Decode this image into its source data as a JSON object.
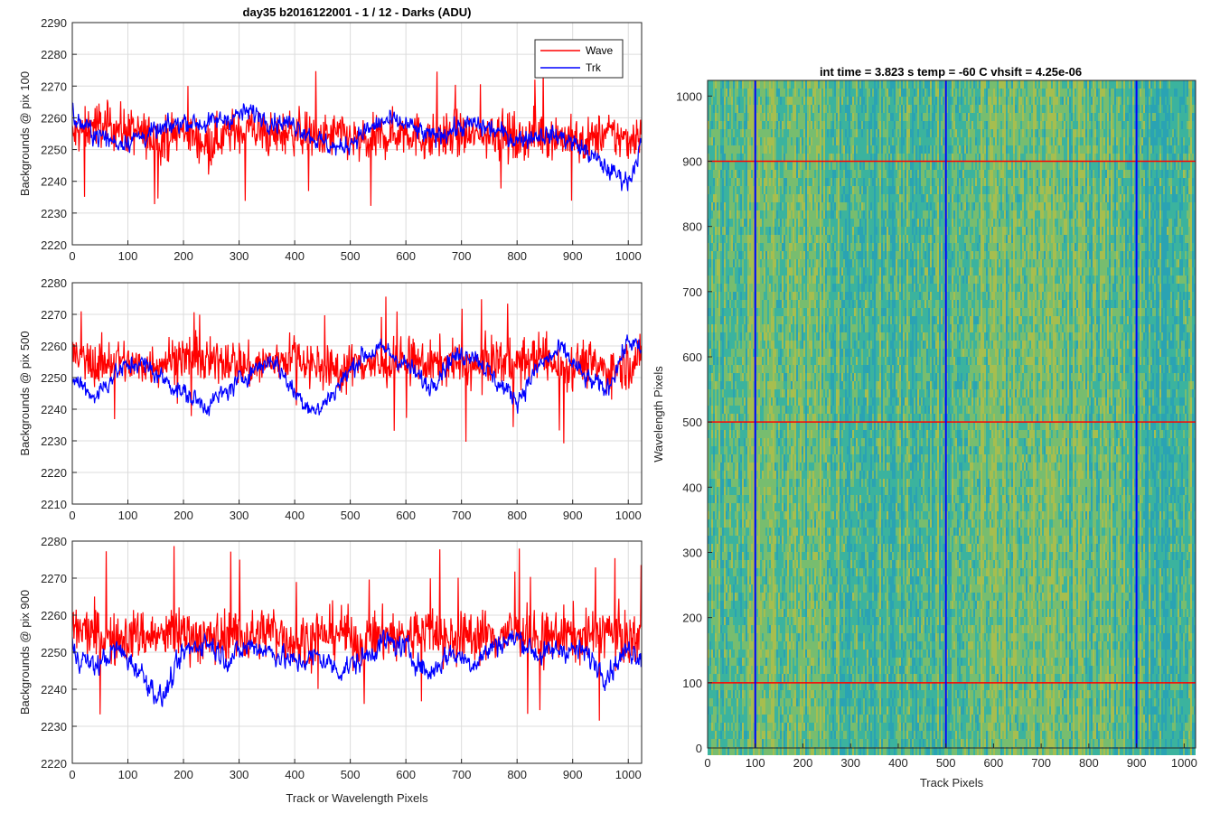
{
  "figure": {
    "title_left": "day35 b2016122001 - 1 / 12 - Darks (ADU)",
    "title_right": "int time = 3.823 s   temp = -60 C   vhsift = 4.25e-06"
  },
  "colors": {
    "wave": "#ff0000",
    "trk": "#0000ff",
    "grid": "#dcdcdc",
    "axis": "#262626"
  },
  "chart_data": [
    {
      "type": "line",
      "title": "day35 b2016122001 - 1 / 12 - Darks (ADU)",
      "ylabel": "Backgrounds @ pix 100",
      "xlabel": "",
      "xlim": [
        0,
        1024
      ],
      "ylim": [
        2220,
        2290
      ],
      "xticks": [
        0,
        100,
        200,
        300,
        400,
        500,
        600,
        700,
        800,
        900,
        1000
      ],
      "yticks": [
        2220,
        2230,
        2240,
        2250,
        2260,
        2270,
        2280,
        2290
      ],
      "grid": true,
      "legend": {
        "placement": "top-right",
        "entries": [
          "Wave",
          "Trk"
        ]
      },
      "series": [
        {
          "name": "Wave",
          "color": "#ff0000",
          "x": [
            0,
            40,
            80,
            120,
            160,
            200,
            240,
            280,
            320,
            360,
            400,
            440,
            480,
            520,
            560,
            600,
            640,
            680,
            720,
            760,
            800,
            840,
            880,
            920,
            960,
            1000,
            1023
          ],
          "values": [
            2254,
            2258,
            2257,
            2255,
            2253,
            2256,
            2252,
            2255,
            2257,
            2254,
            2256,
            2253,
            2255,
            2252,
            2254,
            2256,
            2253,
            2255,
            2254,
            2256,
            2253,
            2255,
            2254,
            2252,
            2255,
            2253,
            2256
          ]
        },
        {
          "name": "Trk",
          "color": "#0000ff",
          "x": [
            0,
            40,
            80,
            120,
            160,
            200,
            240,
            280,
            320,
            360,
            400,
            440,
            480,
            520,
            560,
            600,
            640,
            680,
            720,
            760,
            800,
            840,
            880,
            920,
            960,
            1000,
            1023
          ],
          "values": [
            2260,
            2255,
            2252,
            2254,
            2256,
            2259,
            2258,
            2260,
            2262,
            2259,
            2258,
            2253,
            2250,
            2255,
            2259,
            2258,
            2254,
            2256,
            2258,
            2256,
            2253,
            2255,
            2254,
            2250,
            2244,
            2240,
            2252
          ]
        }
      ]
    },
    {
      "type": "line",
      "ylabel": "Backgrounds @ pix 500",
      "xlabel": "",
      "xlim": [
        0,
        1024
      ],
      "ylim": [
        2210,
        2280
      ],
      "xticks": [
        0,
        100,
        200,
        300,
        400,
        500,
        600,
        700,
        800,
        900,
        1000
      ],
      "yticks": [
        2210,
        2220,
        2230,
        2240,
        2250,
        2260,
        2270,
        2280
      ],
      "grid": true,
      "series": [
        {
          "name": "Wave",
          "color": "#ff0000",
          "x": [
            0,
            40,
            80,
            120,
            160,
            200,
            240,
            280,
            320,
            360,
            400,
            440,
            480,
            520,
            560,
            600,
            640,
            680,
            720,
            760,
            800,
            840,
            880,
            920,
            960,
            1000,
            1023
          ],
          "values": [
            2257,
            2254,
            2256,
            2253,
            2255,
            2257,
            2254,
            2256,
            2253,
            2255,
            2257,
            2254,
            2252,
            2255,
            2253,
            2256,
            2254,
            2255,
            2253,
            2256,
            2254,
            2257,
            2253,
            2255,
            2252,
            2254,
            2256
          ]
        },
        {
          "name": "Trk",
          "color": "#0000ff",
          "x": [
            0,
            40,
            80,
            120,
            160,
            200,
            240,
            280,
            320,
            360,
            400,
            440,
            480,
            520,
            560,
            600,
            640,
            680,
            720,
            760,
            800,
            840,
            880,
            920,
            960,
            1000,
            1023
          ],
          "values": [
            2250,
            2244,
            2252,
            2255,
            2250,
            2245,
            2241,
            2246,
            2252,
            2256,
            2245,
            2239,
            2248,
            2257,
            2259,
            2254,
            2247,
            2256,
            2258,
            2249,
            2243,
            2254,
            2259,
            2250,
            2246,
            2262,
            2258
          ]
        }
      ]
    },
    {
      "type": "line",
      "ylabel": "Backgrounds @ pix 900",
      "xlabel": "Track or Wavelength Pixels",
      "xlim": [
        0,
        1024
      ],
      "ylim": [
        2220,
        2280
      ],
      "xticks": [
        0,
        100,
        200,
        300,
        400,
        500,
        600,
        700,
        800,
        900,
        1000
      ],
      "yticks": [
        2220,
        2230,
        2240,
        2250,
        2260,
        2270,
        2280
      ],
      "grid": true,
      "series": [
        {
          "name": "Wave",
          "color": "#ff0000",
          "x": [
            0,
            40,
            80,
            120,
            160,
            200,
            240,
            280,
            320,
            360,
            400,
            440,
            480,
            520,
            560,
            600,
            640,
            680,
            720,
            760,
            800,
            840,
            880,
            920,
            960,
            1000,
            1023
          ],
          "values": [
            2256,
            2255,
            2253,
            2255,
            2254,
            2256,
            2253,
            2255,
            2254,
            2256,
            2253,
            2254,
            2256,
            2252,
            2255,
            2254,
            2256,
            2253,
            2255,
            2254,
            2256,
            2253,
            2255,
            2254,
            2256,
            2253,
            2255
          ]
        },
        {
          "name": "Trk",
          "color": "#0000ff",
          "x": [
            0,
            40,
            80,
            120,
            160,
            200,
            240,
            280,
            320,
            360,
            400,
            440,
            480,
            520,
            560,
            600,
            640,
            680,
            720,
            760,
            800,
            840,
            880,
            920,
            960,
            1000,
            1023
          ],
          "values": [
            2250,
            2246,
            2251,
            2245,
            2237,
            2250,
            2253,
            2248,
            2252,
            2250,
            2247,
            2249,
            2245,
            2248,
            2253,
            2251,
            2244,
            2250,
            2247,
            2252,
            2254,
            2249,
            2251,
            2250,
            2244,
            2251,
            2249
          ]
        }
      ]
    },
    {
      "type": "heatmap",
      "xlabel": "Track Pixels",
      "ylabel": "Wavelength Pixels",
      "xlim": [
        0,
        1024
      ],
      "ylim": [
        0,
        1024
      ],
      "xticks": [
        0,
        100,
        200,
        300,
        400,
        500,
        600,
        700,
        800,
        900,
        1000
      ],
      "yticks": [
        0,
        100,
        200,
        300,
        400,
        500,
        600,
        700,
        800,
        900,
        1000
      ],
      "colormap": [
        "#2aa3b3",
        "#3bb39e",
        "#77bd6f",
        "#a6be4f"
      ],
      "markers": {
        "vertical_lines_x": [
          100,
          500,
          900
        ],
        "vertical_color": "#0000ff",
        "horizontal_lines_y": [
          100,
          500,
          900
        ],
        "horizontal_color": "#ff0000"
      }
    }
  ]
}
